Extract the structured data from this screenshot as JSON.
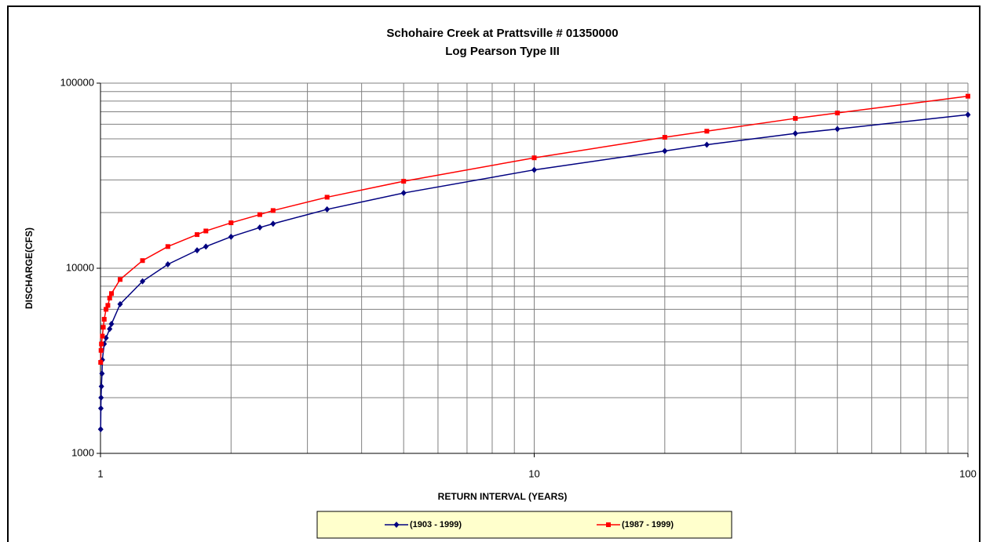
{
  "chart_data": {
    "type": "line",
    "title": "Schohaire Creek at Prattsville # 01350000",
    "subtitle": "Log Pearson Type III",
    "x_label": "RETURN INTERVAL (YEARS)",
    "y_label": "DISCHARGE(CFS)",
    "xlog": true,
    "ylog": true,
    "grid": true,
    "legend": "bottom",
    "xlim": [
      1,
      100
    ],
    "xticks": [
      1,
      10,
      100
    ],
    "ylim": [
      1000,
      100000
    ],
    "yticks": [
      1000,
      10000,
      100000
    ],
    "series": [
      {
        "name": "(1903 - 1999)",
        "color": "#000080",
        "marker": "diamond",
        "x": [
          1.001,
          1.002,
          1.003,
          1.005,
          1.008,
          1.01,
          1.02,
          1.03,
          1.05,
          1.06,
          1.11,
          1.25,
          1.43,
          1.67,
          1.75,
          2,
          2.33,
          2.5,
          3.33,
          5,
          10,
          20,
          25,
          40,
          50,
          100
        ],
        "values": [
          1350,
          1750,
          2000,
          2300,
          2700,
          3200,
          3900,
          4200,
          4700,
          5000,
          6400,
          8500,
          10500,
          12500,
          13100,
          14800,
          16600,
          17400,
          20800,
          25500,
          34000,
          43000,
          46500,
          53500,
          56500,
          67500
        ]
      },
      {
        "name": "(1987 - 1999)",
        "color": "#ff0000",
        "marker": "square",
        "x": [
          1.001,
          1.003,
          1.005,
          1.01,
          1.015,
          1.02,
          1.03,
          1.04,
          1.05,
          1.06,
          1.11,
          1.25,
          1.43,
          1.67,
          1.75,
          2,
          2.33,
          2.5,
          3.33,
          5,
          10,
          20,
          25,
          40,
          50,
          100
        ],
        "values": [
          3100,
          3600,
          3900,
          4300,
          4800,
          5300,
          6000,
          6300,
          6900,
          7300,
          8700,
          11000,
          13100,
          15200,
          15900,
          17600,
          19500,
          20500,
          24200,
          29500,
          39500,
          51000,
          55000,
          64500,
          69000,
          85000
        ]
      }
    ]
  }
}
